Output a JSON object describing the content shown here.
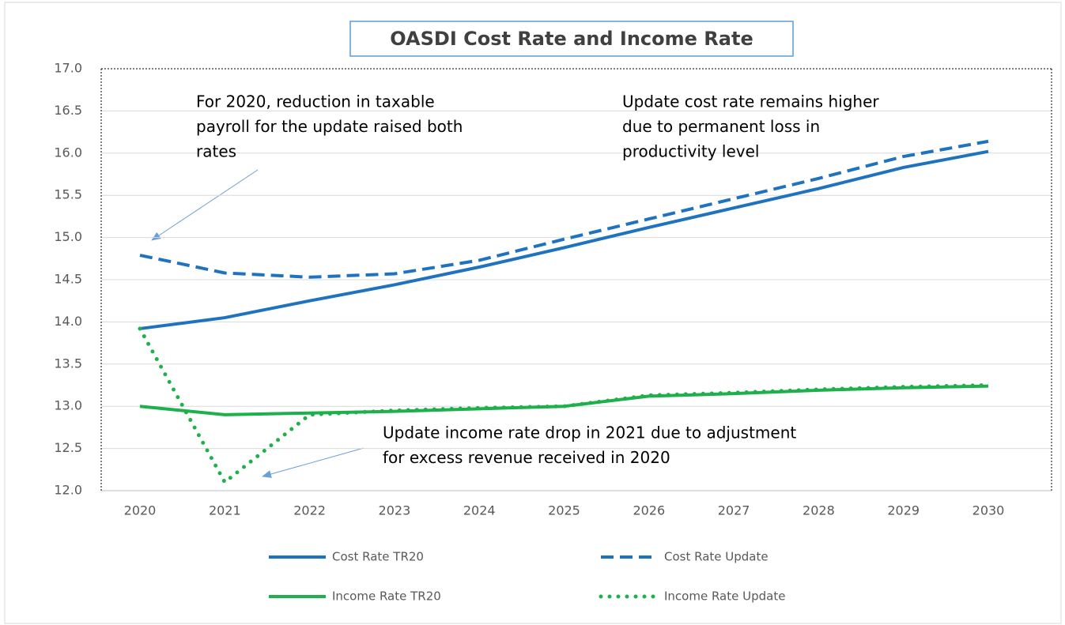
{
  "chart_data": {
    "type": "line",
    "title": "OASDI Cost Rate and Income Rate",
    "categories": [
      "2020",
      "2021",
      "2022",
      "2023",
      "2024",
      "2025",
      "2026",
      "2027",
      "2028",
      "2029",
      "2030"
    ],
    "series": [
      {
        "name": "Cost Rate TR20",
        "color": "#1f73be",
        "style": "solid",
        "values": [
          13.92,
          14.05,
          14.25,
          14.44,
          14.65,
          14.88,
          15.12,
          15.35,
          15.58,
          15.83,
          16.02
        ]
      },
      {
        "name": "Cost Rate Update",
        "color": "#1f73be",
        "style": "dashed",
        "values": [
          14.79,
          14.58,
          14.53,
          14.57,
          14.73,
          14.98,
          15.22,
          15.46,
          15.7,
          15.96,
          16.14
        ]
      },
      {
        "name": "Income Rate TR20",
        "color": "#1db04b",
        "style": "solid",
        "values": [
          13.0,
          12.9,
          12.92,
          12.94,
          12.97,
          13.0,
          13.12,
          13.15,
          13.19,
          13.22,
          13.24
        ]
      },
      {
        "name": "Income Rate Update",
        "color": "#1db04b",
        "style": "dotted",
        "values": [
          13.92,
          12.1,
          12.9,
          12.95,
          12.98,
          13.0,
          13.13,
          13.16,
          13.2,
          13.23,
          13.25
        ]
      }
    ],
    "ylim": [
      12,
      17
    ],
    "yticks": [
      {
        "value": 12,
        "label": "12.0"
      },
      12.5,
      {
        "value": 13,
        "label": "13.0"
      },
      13.5,
      {
        "value": 14,
        "label": "14.0"
      },
      14.5,
      {
        "value": 15,
        "label": "15.0"
      },
      15.5,
      {
        "value": 16,
        "label": "16.0"
      },
      16.5,
      {
        "value": 17,
        "label": "17.0"
      }
    ],
    "grid": true,
    "annotations": [
      {
        "lines": [
          "For 2020, reduction in taxable",
          "payroll for the update raised both",
          "rates"
        ]
      },
      {
        "lines": [
          "Update cost rate remains higher",
          "due to permanent loss in",
          "productivity level"
        ]
      },
      {
        "lines": [
          "Update income rate drop in 2021 due to adjustment",
          "for excess revenue received in 2020"
        ]
      }
    ]
  }
}
